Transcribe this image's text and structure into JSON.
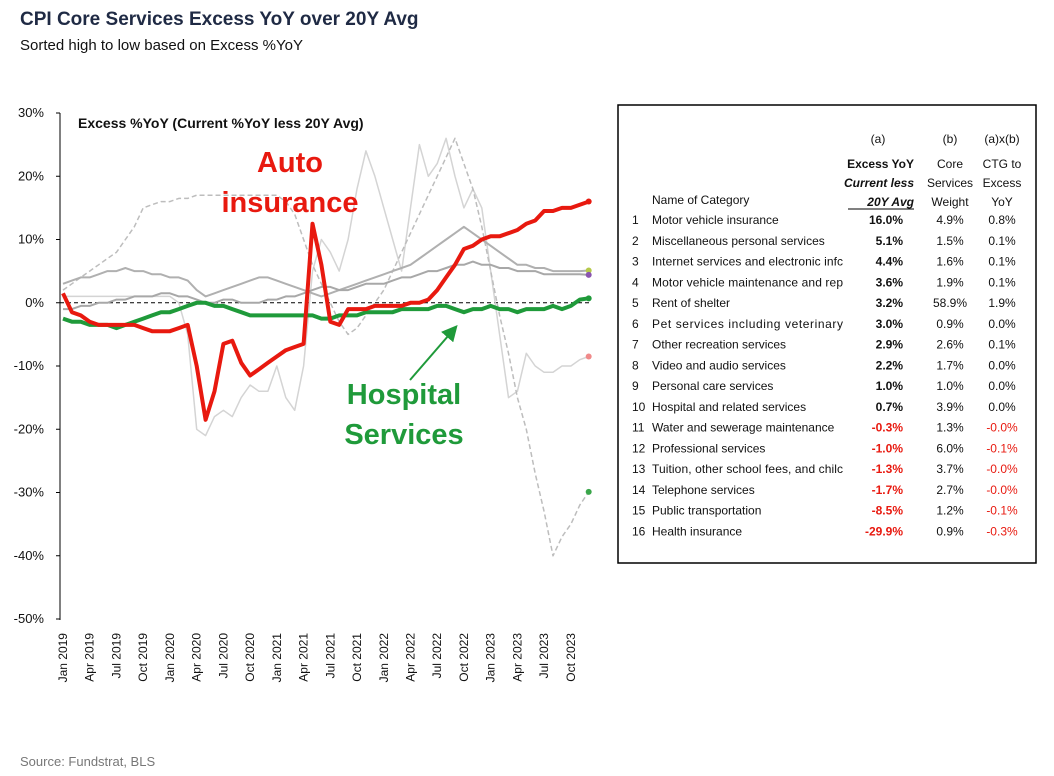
{
  "chart_data": {
    "type": "line",
    "title": "CPI Core Services Excess YoY over 20Y Avg",
    "subtitle": "Sorted high to low based on Excess %YoY",
    "plot_label": "Excess %YoY (Current %YoY less 20Y Avg)",
    "source": "Source: Fundstrat, BLS",
    "annotations": [
      {
        "lines": [
          "Auto",
          "insurance"
        ],
        "color": "#e8190f"
      },
      {
        "lines": [
          "Hospital",
          "Services"
        ],
        "color": "#1f9a3a"
      }
    ],
    "categories": [
      "Jan 2019",
      null,
      null,
      "Apr 2019",
      null,
      null,
      "Jul 2019",
      null,
      null,
      "Oct 2019",
      null,
      null,
      "Jan 2020",
      null,
      null,
      "Apr 2020",
      null,
      null,
      "Jul 2020",
      null,
      null,
      "Oct 2020",
      null,
      null,
      "Jan 2021",
      null,
      null,
      "Apr 2021",
      null,
      null,
      "Jul 2021",
      null,
      null,
      "Oct 2021",
      null,
      null,
      "Jan 2022",
      null,
      null,
      "Apr 2022",
      null,
      null,
      "Jul 2022",
      null,
      null,
      "Oct 2022",
      null,
      null,
      "Jan 2023",
      null,
      null,
      "Apr 2023",
      null,
      null,
      "Jul 2023",
      null,
      null,
      "Oct 2023",
      null,
      null
    ],
    "ylim": [
      -50,
      30
    ],
    "yticks": [
      {
        "value": -50,
        "label": "-50%"
      },
      {
        "value": -40,
        "label": "-40%"
      },
      {
        "value": -30,
        "label": "-30%"
      },
      {
        "value": -20,
        "label": "-20%"
      },
      {
        "value": -10,
        "label": "-10%"
      },
      {
        "value": 0,
        "label": "0%"
      },
      {
        "value": 10,
        "label": "10%"
      },
      {
        "value": 20,
        "label": "20%"
      },
      {
        "value": 30,
        "label": "30%"
      }
    ],
    "series": [
      {
        "color": "#d4d4d4",
        "width": 1.5,
        "dash": false,
        "end_color": "#f08a8a",
        "values": [
          1,
          1,
          1,
          1,
          1,
          1,
          1,
          1,
          1,
          1,
          1,
          1,
          1,
          0,
          -5,
          -20,
          -21,
          -18,
          -17,
          -18,
          -15,
          -13,
          -14,
          -14,
          -10,
          -15,
          -17,
          -10,
          5,
          10,
          8,
          5,
          10,
          18,
          24,
          20,
          15,
          10,
          5,
          15,
          25,
          20,
          22,
          26,
          20,
          15,
          18,
          15,
          5,
          -5,
          -15,
          -14,
          -8,
          -10,
          -11,
          -11,
          -10,
          -10,
          -9,
          -8.5
        ]
      },
      {
        "color": "#bdbdbd",
        "width": 1.5,
        "dash": true,
        "end_color": "#3aa64a",
        "values": [
          2,
          3,
          4,
          5,
          6,
          7,
          8,
          10,
          12,
          15,
          15.5,
          16,
          16,
          16.5,
          16.5,
          17,
          17,
          17,
          17,
          17,
          17,
          17,
          17,
          17,
          17,
          16,
          14,
          10,
          6,
          3,
          0,
          -3,
          -5,
          -4,
          -2,
          0,
          2,
          5,
          8,
          11,
          14,
          17,
          20,
          23,
          26,
          22,
          18,
          12,
          5,
          -2,
          -8,
          -15,
          -20,
          -27,
          -33,
          -40,
          -37,
          -35,
          -32,
          -29.9
        ]
      },
      {
        "color": "#b0b0b0",
        "width": 2,
        "dash": false,
        "end_color": "#b5c94a",
        "values": [
          3,
          3.5,
          4,
          4,
          4.5,
          5,
          5,
          5.5,
          5,
          5,
          4.5,
          4.5,
          4,
          4,
          3.5,
          2,
          1,
          1.5,
          2,
          2.5,
          3,
          3.5,
          4,
          4,
          3.5,
          3,
          2.5,
          2,
          1.5,
          1,
          1.5,
          2,
          2.5,
          3,
          3.5,
          4,
          4.5,
          5,
          5.5,
          6,
          7,
          8,
          9,
          10,
          11,
          12,
          11,
          10,
          9,
          8,
          7,
          6,
          6,
          5.5,
          5.5,
          5,
          5,
          5,
          5,
          5.1
        ]
      },
      {
        "color": "#a8a8a8",
        "width": 2,
        "dash": false,
        "end_color": "#8a55b0",
        "values": [
          -1,
          -1,
          -0.5,
          -0.5,
          0,
          0,
          0.5,
          0.5,
          1,
          1,
          1,
          1.5,
          1.5,
          1,
          1,
          0.5,
          0,
          0,
          0.5,
          0.5,
          0,
          0,
          0,
          0.5,
          0.5,
          1,
          1,
          1.5,
          2,
          2.5,
          2.5,
          2,
          2,
          2.5,
          3,
          3,
          3,
          3.5,
          4,
          4,
          4.5,
          5,
          5,
          5.5,
          6,
          6,
          6.5,
          6,
          6,
          5.5,
          5.5,
          5,
          5,
          5,
          4.5,
          4.5,
          4.5,
          4.5,
          4.5,
          4.4
        ]
      },
      {
        "color": "#1f9a3a",
        "width": 4,
        "dash": false,
        "end_color": "#1f9a3a",
        "values": [
          -2.5,
          -3,
          -3,
          -3.5,
          -3.5,
          -3.5,
          -4,
          -3.5,
          -3,
          -2.5,
          -2,
          -1.5,
          -1.5,
          -1,
          -0.5,
          0,
          0,
          -0.5,
          -0.5,
          -1,
          -1.5,
          -2,
          -2,
          -2,
          -2,
          -2,
          -2,
          -2,
          -2,
          -2.5,
          -2.5,
          -2,
          -2,
          -2,
          -1.5,
          -1.5,
          -1.5,
          -1.5,
          -1,
          -1,
          -1,
          -1,
          -0.5,
          -0.5,
          -1,
          -1.5,
          -1,
          -1,
          -0.5,
          -1,
          -1,
          -1.5,
          -1,
          -1,
          -1,
          -0.5,
          -1,
          -0.5,
          0.5,
          0.7
        ]
      },
      {
        "color": "#e8190f",
        "width": 4,
        "dash": false,
        "end_color": "#e8190f",
        "values": [
          1.5,
          -1.5,
          -2,
          -3,
          -3.5,
          -3.5,
          -3.5,
          -3.5,
          -3.5,
          -4,
          -4.5,
          -4.5,
          -4.5,
          -4,
          -3.5,
          -10,
          -18.5,
          -14,
          -6.5,
          -6,
          -9.5,
          -11.5,
          -10.5,
          -9.5,
          -8.5,
          -7.5,
          -7,
          -6.5,
          12.5,
          6,
          -3,
          -3.5,
          -1,
          -1,
          -1,
          -0.5,
          -0.5,
          -0.5,
          -0.5,
          0,
          0,
          0.5,
          2,
          4,
          6,
          8.5,
          9,
          10,
          10.5,
          10.5,
          11,
          11.5,
          12.5,
          13,
          14.5,
          14.5,
          15,
          15,
          15.5,
          16
        ]
      }
    ]
  },
  "table": {
    "headers": [
      {
        "tag": "(a)",
        "lines": [
          "Excess YoY",
          "Current less",
          "20Y Avg"
        ]
      },
      {
        "tag": "(b)",
        "lines": [
          "Core",
          "Services",
          "Weight"
        ]
      },
      {
        "tag": "(a)x(b)",
        "lines": [
          "CTG to",
          "Excess",
          "YoY"
        ]
      }
    ],
    "name_header": "Name of Category",
    "rows": [
      [
        "1",
        "Motor vehicle insurance",
        "16.0%",
        "4.9%",
        "0.8%"
      ],
      [
        "2",
        "Miscellaneous personal services",
        "5.1%",
        "1.5%",
        "0.1%"
      ],
      [
        "3",
        "Internet services and electronic infc",
        "4.4%",
        "1.6%",
        "0.1%"
      ],
      [
        "4",
        "Motor vehicle maintenance and rep",
        "3.6%",
        "1.9%",
        "0.1%"
      ],
      [
        "5",
        "Rent of shelter",
        "3.2%",
        "58.9%",
        "1.9%"
      ],
      [
        "6",
        "Pet services including veterinary",
        "3.0%",
        "0.9%",
        "0.0%"
      ],
      [
        "7",
        "Other recreation services",
        "2.9%",
        "2.6%",
        "0.1%"
      ],
      [
        "8",
        "Video and audio services",
        "2.2%",
        "1.7%",
        "0.0%"
      ],
      [
        "9",
        "Personal care services",
        "1.0%",
        "1.0%",
        "0.0%"
      ],
      [
        "10",
        "Hospital and related services",
        "0.7%",
        "3.9%",
        "0.0%"
      ],
      [
        "11",
        "Water and sewerage maintenance",
        "-0.3%",
        "1.3%",
        "-0.0%"
      ],
      [
        "12",
        "Professional services",
        "-1.0%",
        "6.0%",
        "-0.1%"
      ],
      [
        "13",
        "Tuition, other school fees, and chilc",
        "-1.3%",
        "3.7%",
        "-0.0%"
      ],
      [
        "14",
        "Telephone services",
        "-1.7%",
        "2.7%",
        "-0.0%"
      ],
      [
        "15",
        "Public transportation",
        "-8.5%",
        "1.2%",
        "-0.1%"
      ],
      [
        "16",
        "Health insurance",
        "-29.9%",
        "0.9%",
        "-0.3%"
      ]
    ]
  }
}
